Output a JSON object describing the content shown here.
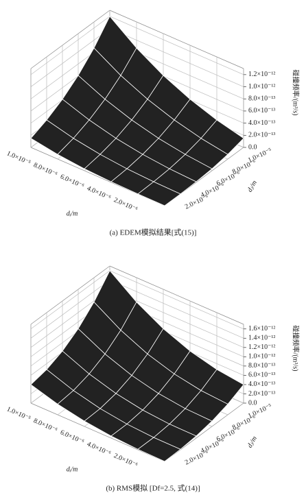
{
  "chart_data": [
    {
      "type": "surface",
      "title": "(a) EDEM模拟结果[式(15)]",
      "x_label": "dᵢ/m",
      "y_label": "dⱼ/m",
      "z_label": "碰撞频率/(m³/s)",
      "color": "#222222",
      "grid": true,
      "x": [
        0,
        2e-06,
        4e-06,
        6e-06,
        8e-06,
        1e-05
      ],
      "y": [
        0,
        2e-06,
        4e-06,
        6e-06,
        8e-06,
        1e-05
      ],
      "z": [
        [
          0,
          1e-15,
          1e-14,
          3.2e-14,
          7.7e-14,
          1.5e-13
        ],
        [
          1e-15,
          1e-14,
          3.2e-14,
          7.7e-14,
          1.5e-13,
          2.6e-13
        ],
        [
          1e-14,
          3.2e-14,
          7.7e-14,
          1.5e-13,
          2.6e-13,
          4.1e-13
        ],
        [
          3.2e-14,
          7.7e-14,
          1.5e-13,
          2.6e-13,
          4.1e-13,
          6.1e-13
        ],
        [
          7.7e-14,
          1.5e-13,
          2.6e-13,
          4.1e-13,
          6.1e-13,
          8.7e-13
        ],
        [
          1.5e-13,
          2.6e-13,
          4.1e-13,
          6.1e-13,
          8.7e-13,
          1.2e-12
        ]
      ],
      "xlim": [
        0,
        1e-05
      ],
      "ylim": [
        0,
        1e-05
      ],
      "zlim": [
        0,
        1.3e-12
      ],
      "xticks": [
        {
          "value": 1e-05,
          "label": "1.0×10⁻⁵"
        },
        {
          "value": 8e-06,
          "label": "8.0×10⁻⁶"
        },
        {
          "value": 6e-06,
          "label": "6.0×10⁻⁶"
        },
        {
          "value": 4e-06,
          "label": "4.0×10⁻⁶"
        },
        {
          "value": 2e-06,
          "label": "2.0×10⁻⁶"
        }
      ],
      "yticks": [
        {
          "value": 1e-05,
          "label": "1.0×10⁻⁵"
        },
        {
          "value": 8e-06,
          "label": "8.0×10⁻⁶"
        },
        {
          "value": 6e-06,
          "label": "6.0×10⁻⁶"
        },
        {
          "value": 4e-06,
          "label": "4.0×10⁻⁶"
        },
        {
          "value": 2e-06,
          "label": "2.0×10⁻⁶"
        }
      ],
      "zticks": [
        {
          "value": 0,
          "label": "0.0"
        },
        {
          "value": 2e-13,
          "label": "2.0×10⁻¹³"
        },
        {
          "value": 4e-13,
          "label": "4.0×10⁻¹³"
        },
        {
          "value": 6e-13,
          "label": "6.0×10⁻¹³"
        },
        {
          "value": 8e-13,
          "label": "8.0×10⁻¹³"
        },
        {
          "value": 1e-12,
          "label": "1.0×10⁻¹²"
        },
        {
          "value": 1.2e-12,
          "label": "1.2×10⁻¹²"
        }
      ]
    },
    {
      "type": "surface",
      "title": "(b) RMS模拟 [Df=2.5, 式(14)]",
      "x_label": "dᵢ/m",
      "y_label": "dⱼ/m",
      "z_label": "碰撞频率/(m³/s)",
      "color": "#222222",
      "grid": true,
      "x": [
        0,
        2e-06,
        4e-06,
        6e-06,
        8e-06,
        1e-05
      ],
      "y": [
        0,
        2e-06,
        4e-06,
        6e-06,
        8e-06,
        1e-05
      ],
      "z": [
        [
          0,
          1e-14,
          4.5e-14,
          1.15e-13,
          2.3e-13,
          4e-13
        ],
        [
          1e-14,
          1.3e-14,
          5.1e-14,
          1.34e-13,
          2.72e-13,
          4.74e-13
        ],
        [
          4.5e-14,
          5.1e-14,
          1.02e-13,
          2.08e-13,
          3.78e-13,
          6.21e-13
        ],
        [
          1.15e-13,
          1.34e-13,
          2.08e-13,
          3.46e-13,
          5.57e-13,
          8.51e-13
        ],
        [
          2.3e-13,
          2.72e-13,
          3.78e-13,
          5.57e-13,
          8.19e-13,
          1.174e-12
        ],
        [
          4e-13,
          4.74e-13,
          6.21e-13,
          8.51e-13,
          1.174e-12,
          1.6e-12
        ]
      ],
      "xlim": [
        0,
        1e-05
      ],
      "ylim": [
        0,
        1e-05
      ],
      "zlim": [
        0,
        1.7e-12
      ],
      "xticks": [
        {
          "value": 1e-05,
          "label": "1.0×10⁻⁵"
        },
        {
          "value": 8e-06,
          "label": "8.0×10⁻⁶"
        },
        {
          "value": 6e-06,
          "label": "6.0×10⁻⁶"
        },
        {
          "value": 4e-06,
          "label": "4.0×10⁻⁶"
        },
        {
          "value": 2e-06,
          "label": "2.0×10⁻⁶"
        }
      ],
      "yticks": [
        {
          "value": 1e-05,
          "label": "1.0×10⁻⁵"
        },
        {
          "value": 8e-06,
          "label": "8.0×10⁻⁶"
        },
        {
          "value": 6e-06,
          "label": "6.0×10⁻⁶"
        },
        {
          "value": 4e-06,
          "label": "4.0×10⁻⁶"
        },
        {
          "value": 2e-06,
          "label": "2.0×10⁻⁶"
        }
      ],
      "zticks": [
        {
          "value": 0,
          "label": "0.0"
        },
        {
          "value": 2e-13,
          "label": "2.0×10⁻¹³"
        },
        {
          "value": 4e-13,
          "label": "4.0×10⁻¹³"
        },
        {
          "value": 6e-13,
          "label": "6.0×10⁻¹³"
        },
        {
          "value": 8e-13,
          "label": "8.0×10⁻¹³"
        },
        {
          "value": 1e-12,
          "label": "1.0×10⁻¹²"
        },
        {
          "value": 1.2e-12,
          "label": "1.2×10⁻¹²"
        },
        {
          "value": 1.4e-12,
          "label": "1.4×10⁻¹²"
        },
        {
          "value": 1.6e-12,
          "label": "1.6×10⁻¹²"
        }
      ]
    }
  ]
}
